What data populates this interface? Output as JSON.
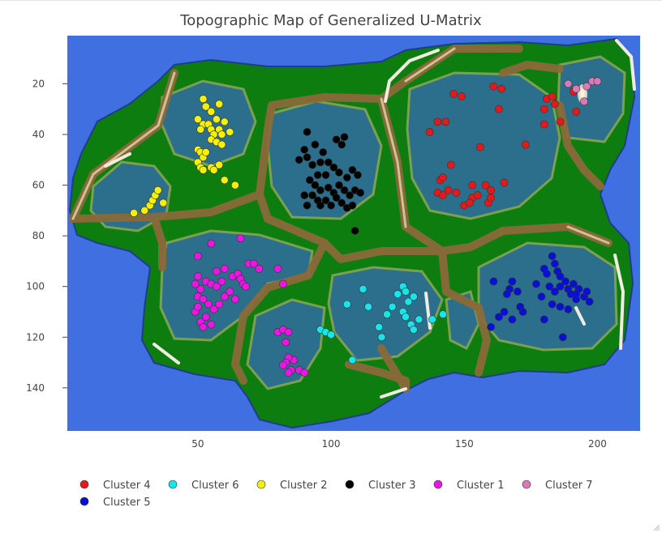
{
  "chart_data": {
    "type": "scatter",
    "title": "Topographic Map of Generalized U-Matrix",
    "xlabel": "",
    "ylabel": "",
    "xlim": [
      1,
      216
    ],
    "ylim": [
      157,
      1
    ],
    "x_ticks": [
      50,
      100,
      150,
      200
    ],
    "y_ticks": [
      20,
      40,
      60,
      80,
      100,
      120,
      140
    ],
    "grid": false,
    "legend_position": "bottom",
    "background": "topographic u-matrix (sea, lowland, hills, ridges)",
    "colors": {
      "sea": "#3f6fe0",
      "deep_valley": "#2b6f8c",
      "lowland": "#0e7d10",
      "hill": "#5a8f2a",
      "ridge": "#8a6a3a",
      "peak": "#f0ece0"
    },
    "series": [
      {
        "name": "Cluster 4",
        "color": "#e31a1c",
        "points": [
          [
            137,
            39
          ],
          [
            140,
            35
          ],
          [
            143,
            35
          ],
          [
            146,
            24
          ],
          [
            149,
            25
          ],
          [
            141,
            58
          ],
          [
            142,
            57
          ],
          [
            145,
            52
          ],
          [
            156,
            45
          ],
          [
            161,
            21
          ],
          [
            164,
            22
          ],
          [
            163,
            30
          ],
          [
            140,
            63
          ],
          [
            142,
            64
          ],
          [
            144,
            62
          ],
          [
            147,
            63
          ],
          [
            153,
            60
          ],
          [
            158,
            60
          ],
          [
            160,
            62
          ],
          [
            165,
            59
          ],
          [
            153,
            65
          ],
          [
            155,
            64
          ],
          [
            150,
            68
          ],
          [
            152,
            67
          ],
          [
            159,
            67
          ],
          [
            160,
            65
          ],
          [
            173,
            44
          ],
          [
            180,
            30
          ],
          [
            181,
            26
          ],
          [
            183,
            25
          ],
          [
            184,
            28
          ],
          [
            180,
            36
          ],
          [
            186,
            35
          ],
          [
            192,
            31
          ],
          [
            191,
            23
          ]
        ]
      },
      {
        "name": "Cluster 6",
        "color": "#17e5ea",
        "points": [
          [
            106,
            107
          ],
          [
            112,
            101
          ],
          [
            114,
            108
          ],
          [
            121,
            111
          ],
          [
            123,
            108
          ],
          [
            118,
            116
          ],
          [
            119,
            120
          ],
          [
            125,
            103
          ],
          [
            127,
            100
          ],
          [
            128,
            102
          ],
          [
            129,
            106
          ],
          [
            131,
            104
          ],
          [
            127,
            110
          ],
          [
            128,
            112
          ],
          [
            130,
            115
          ],
          [
            131,
            117
          ],
          [
            133,
            113
          ],
          [
            138,
            113
          ],
          [
            142,
            111
          ],
          [
            108,
            129
          ],
          [
            96,
            117
          ],
          [
            98,
            118
          ],
          [
            100,
            119
          ]
        ]
      },
      {
        "name": "Cluster 2",
        "color": "#f5f00a",
        "points": [
          [
            52,
            26
          ],
          [
            53,
            29
          ],
          [
            55,
            31
          ],
          [
            58,
            28
          ],
          [
            50,
            34
          ],
          [
            52,
            36
          ],
          [
            51,
            38
          ],
          [
            54,
            36
          ],
          [
            55,
            38
          ],
          [
            57,
            34
          ],
          [
            58,
            38
          ],
          [
            56,
            40
          ],
          [
            59,
            40
          ],
          [
            60,
            35
          ],
          [
            62,
            39
          ],
          [
            55,
            42
          ],
          [
            57,
            43
          ],
          [
            59,
            44
          ],
          [
            50,
            46
          ],
          [
            51,
            47
          ],
          [
            52,
            49
          ],
          [
            53,
            47
          ],
          [
            50,
            51
          ],
          [
            51,
            53
          ],
          [
            52,
            54
          ],
          [
            55,
            53
          ],
          [
            56,
            54
          ],
          [
            58,
            52
          ],
          [
            60,
            58
          ],
          [
            64,
            60
          ],
          [
            26,
            71
          ],
          [
            30,
            70
          ],
          [
            32,
            68
          ],
          [
            33,
            66
          ],
          [
            34,
            64
          ],
          [
            35,
            62
          ],
          [
            37,
            67
          ]
        ]
      },
      {
        "name": "Cluster 3",
        "color": "#000000",
        "points": [
          [
            91,
            39
          ],
          [
            94,
            44
          ],
          [
            90,
            46
          ],
          [
            91,
            49
          ],
          [
            97,
            47
          ],
          [
            102,
            42
          ],
          [
            104,
            44
          ],
          [
            105,
            41
          ],
          [
            88,
            50
          ],
          [
            93,
            52
          ],
          [
            96,
            51
          ],
          [
            99,
            51
          ],
          [
            101,
            53
          ],
          [
            95,
            56
          ],
          [
            98,
            56
          ],
          [
            103,
            55
          ],
          [
            106,
            57
          ],
          [
            108,
            54
          ],
          [
            110,
            56
          ],
          [
            92,
            58
          ],
          [
            94,
            60
          ],
          [
            96,
            62
          ],
          [
            99,
            61
          ],
          [
            101,
            63
          ],
          [
            103,
            60
          ],
          [
            105,
            62
          ],
          [
            107,
            64
          ],
          [
            109,
            62
          ],
          [
            111,
            63
          ],
          [
            90,
            64
          ],
          [
            93,
            64
          ],
          [
            95,
            66
          ],
          [
            98,
            66
          ],
          [
            100,
            68
          ],
          [
            102,
            65
          ],
          [
            104,
            67
          ],
          [
            106,
            69
          ],
          [
            108,
            68
          ],
          [
            91,
            68
          ],
          [
            96,
            68
          ],
          [
            109,
            78
          ]
        ]
      },
      {
        "name": "Cluster 1",
        "color": "#e817e3",
        "points": [
          [
            50,
            88
          ],
          [
            55,
            83
          ],
          [
            66,
            81
          ],
          [
            69,
            91
          ],
          [
            71,
            91
          ],
          [
            73,
            93
          ],
          [
            80,
            93
          ],
          [
            82,
            99
          ],
          [
            57,
            94
          ],
          [
            60,
            93
          ],
          [
            63,
            96
          ],
          [
            65,
            95
          ],
          [
            66,
            97
          ],
          [
            67,
            99
          ],
          [
            68,
            100
          ],
          [
            62,
            102
          ],
          [
            64,
            105
          ],
          [
            60,
            104
          ],
          [
            58,
            107
          ],
          [
            56,
            109
          ],
          [
            53,
            112
          ],
          [
            55,
            115
          ],
          [
            51,
            114
          ],
          [
            52,
            116
          ],
          [
            49,
            110
          ],
          [
            50,
            104
          ],
          [
            51,
            101
          ],
          [
            53,
            98
          ],
          [
            55,
            99
          ],
          [
            57,
            100
          ],
          [
            59,
            98
          ],
          [
            50,
            96
          ],
          [
            49,
            99
          ],
          [
            52,
            105
          ],
          [
            54,
            107
          ],
          [
            50,
            108
          ],
          [
            80,
            118
          ],
          [
            82,
            117
          ],
          [
            84,
            118
          ],
          [
            83,
            122
          ],
          [
            86,
            129
          ],
          [
            84,
            128
          ],
          [
            83,
            130
          ],
          [
            82,
            131
          ],
          [
            85,
            133
          ],
          [
            88,
            133
          ],
          [
            90,
            134
          ],
          [
            84,
            134
          ]
        ]
      },
      {
        "name": "Cluster 7",
        "color": "#d67ab8",
        "points": [
          [
            189,
            20
          ],
          [
            192,
            22
          ],
          [
            196,
            21
          ],
          [
            198,
            19
          ],
          [
            200,
            19
          ],
          [
            195,
            27
          ]
        ]
      },
      {
        "name": "Cluster 5",
        "color": "#0a0fd4",
        "points": [
          [
            161,
            98
          ],
          [
            168,
            98
          ],
          [
            167,
            101
          ],
          [
            166,
            103
          ],
          [
            170,
            102
          ],
          [
            171,
            108
          ],
          [
            172,
            110
          ],
          [
            165,
            110
          ],
          [
            163,
            112
          ],
          [
            168,
            113
          ],
          [
            160,
            116
          ],
          [
            180,
            93
          ],
          [
            181,
            95
          ],
          [
            183,
            88
          ],
          [
            184,
            91
          ],
          [
            185,
            94
          ],
          [
            186,
            96
          ],
          [
            182,
            100
          ],
          [
            184,
            102
          ],
          [
            186,
            100
          ],
          [
            188,
            98
          ],
          [
            189,
            101
          ],
          [
            190,
            103
          ],
          [
            191,
            99
          ],
          [
            193,
            101
          ],
          [
            192,
            105
          ],
          [
            195,
            104
          ],
          [
            196,
            102
          ],
          [
            197,
            106
          ],
          [
            179,
            104
          ],
          [
            183,
            107
          ],
          [
            186,
            108
          ],
          [
            189,
            109
          ],
          [
            180,
            113
          ],
          [
            187,
            120
          ],
          [
            192,
            103
          ],
          [
            177,
            99
          ]
        ]
      }
    ]
  }
}
